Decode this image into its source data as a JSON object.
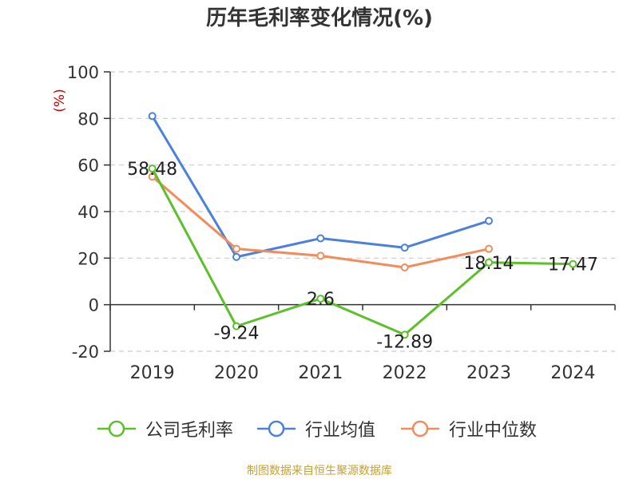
{
  "title": "历年毛利率变化情况(%)",
  "source_note": "制图数据来自恒生聚源数据库",
  "colors": {
    "company": "#5cc02a",
    "industry_avg": "#4b81dc",
    "industry_median": "#f38c5b",
    "unit": "#cc0000",
    "source": "#c8a030"
  },
  "chart_data": {
    "type": "line",
    "x": [
      "2019",
      "2020",
      "2021",
      "2022",
      "2023",
      "2024"
    ],
    "yunit": "(%)",
    "ylim": [
      -20,
      100
    ],
    "yticks": [
      -20,
      0,
      20,
      40,
      60,
      80,
      100
    ],
    "grid": true,
    "legend_position": "bottom",
    "series": [
      {
        "key": "company",
        "name": "公司毛利率",
        "values": [
          58.48,
          -9.24,
          2.6,
          -12.89,
          18.14,
          17.47
        ],
        "labels": [
          "58.48",
          "-9.24",
          "2.6",
          "-12.89",
          "18.14",
          "17.47"
        ]
      },
      {
        "key": "industry_avg",
        "name": "行业均值",
        "values": [
          81,
          20.5,
          28.5,
          24.5,
          36,
          null
        ]
      },
      {
        "key": "industry_median",
        "name": "行业中位数",
        "values": [
          55,
          24,
          21,
          16,
          24,
          null
        ]
      }
    ]
  }
}
